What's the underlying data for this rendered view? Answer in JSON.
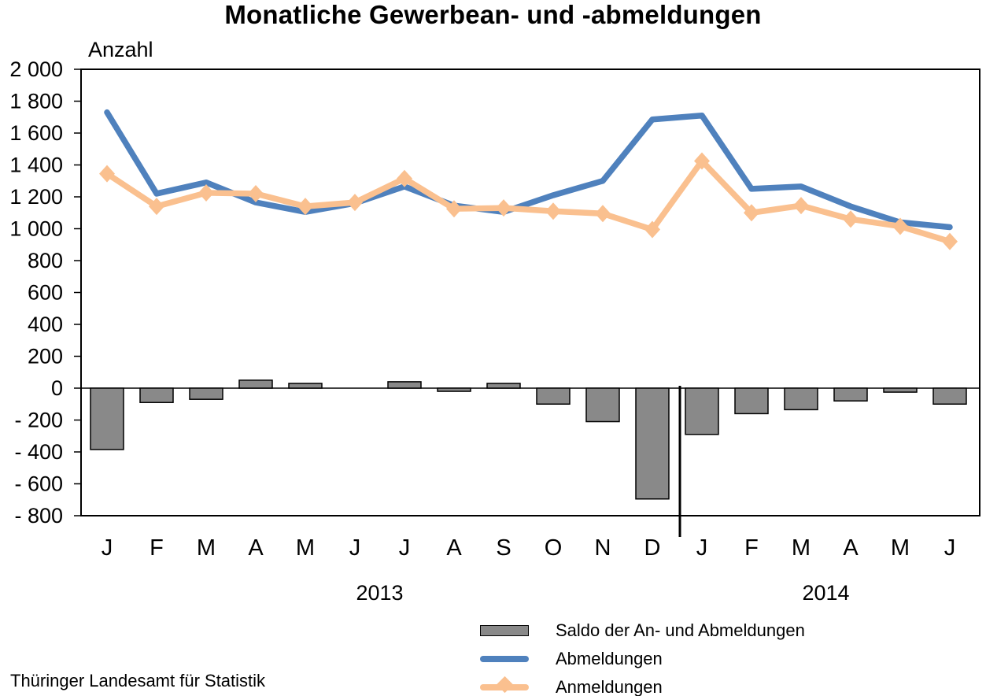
{
  "header": {
    "title": "Monatliche Gewerbean- und -abmeldungen"
  },
  "footer": {
    "source": "Thüringer Landesamt für Statistik"
  },
  "chart_data": {
    "type": "combo-bar-line",
    "title": "Monatliche Gewerbean- und -abmeldungen",
    "ylabel": "Anzahl",
    "categories": [
      "J",
      "F",
      "M",
      "A",
      "M",
      "J",
      "J",
      "A",
      "S",
      "O",
      "N",
      "D",
      "J",
      "F",
      "M",
      "A",
      "M",
      "J"
    ],
    "year_groups": [
      {
        "label": "2013",
        "from_month_index": 0,
        "to_month_index": 11
      },
      {
        "label": "2014",
        "from_month_index": 12,
        "to_month_index": 17
      }
    ],
    "series": [
      {
        "name": "Saldo der An- und Abmeldungen",
        "type": "bar",
        "color": "#898989",
        "values": [
          -385,
          -90,
          -70,
          50,
          30,
          0,
          40,
          -20,
          30,
          -100,
          -210,
          -695,
          -290,
          -160,
          -135,
          -80,
          -25,
          -100
        ]
      },
      {
        "name": "Abmeldungen",
        "type": "line",
        "color": "#4f81bd",
        "values": [
          1730,
          1220,
          1290,
          1165,
          1105,
          1160,
          1265,
          1145,
          1105,
          1210,
          1300,
          1685,
          1710,
          1250,
          1265,
          1140,
          1040,
          1010
        ]
      },
      {
        "name": "Anmeldungen",
        "type": "line",
        "marker": "diamond",
        "color": "#fac08f",
        "values": [
          1345,
          1140,
          1225,
          1220,
          1140,
          1165,
          1315,
          1125,
          1130,
          1110,
          1095,
          995,
          1425,
          1100,
          1145,
          1060,
          1015,
          920
        ]
      }
    ],
    "y_ticks": [
      "2 000",
      "1 800",
      "1 600",
      "1 400",
      "1 200",
      "1 000",
      "800",
      "600",
      "400",
      "200",
      "0",
      "- 200",
      "- 400",
      "- 600",
      "- 800"
    ],
    "ylim": [
      -800,
      2000
    ],
    "y_step": 200,
    "grid": false,
    "legend_position": "bottom-right"
  }
}
